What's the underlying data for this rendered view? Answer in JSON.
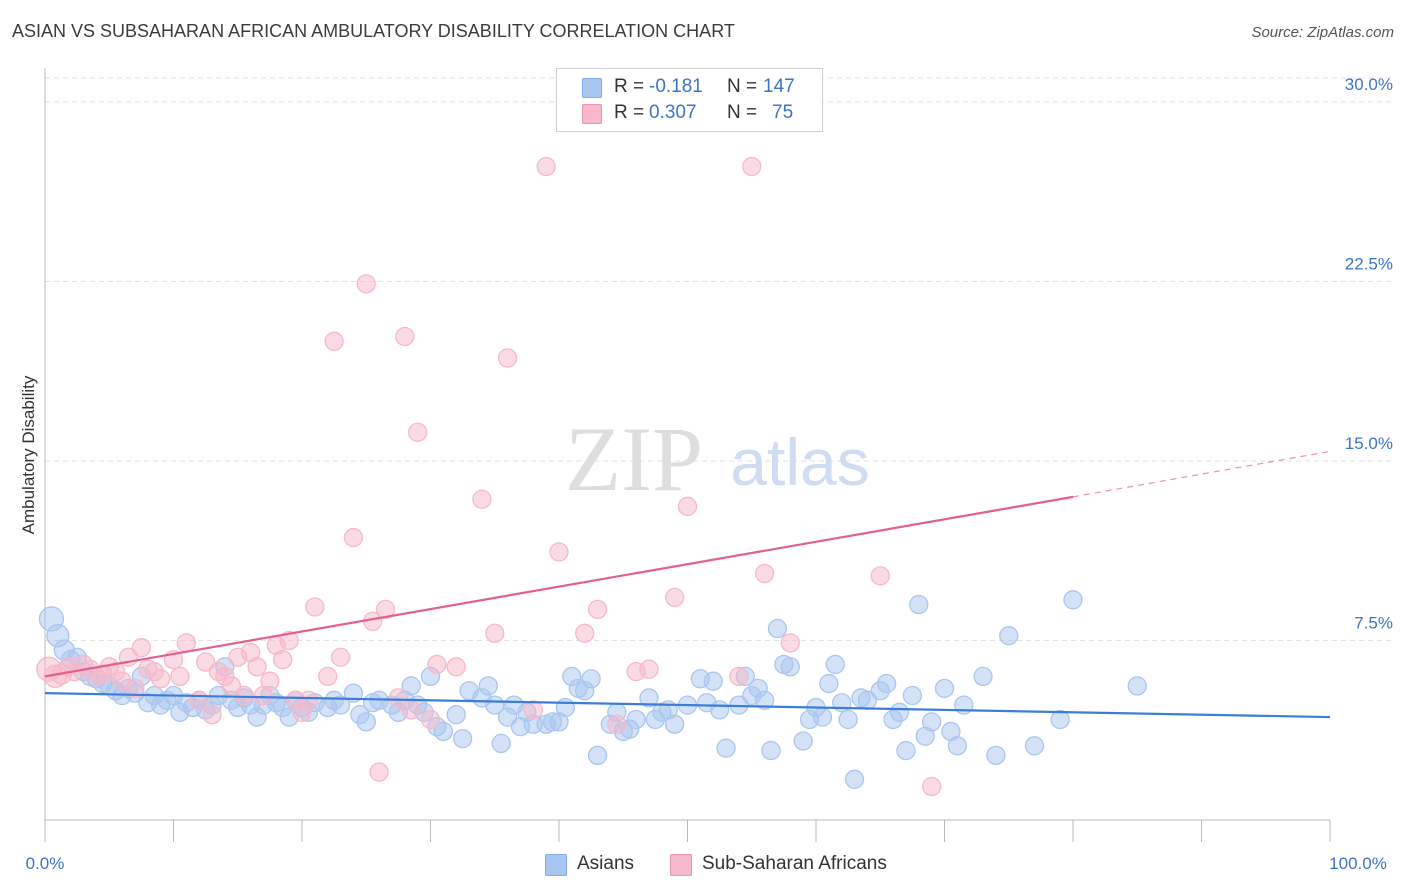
{
  "title": "ASIAN VS SUBSAHARAN AFRICAN AMBULATORY DISABILITY CORRELATION CHART",
  "source": "Source: ZipAtlas.com",
  "watermark": {
    "zip": "ZIP",
    "atlas": "atlas"
  },
  "legend": {
    "rows": [
      {
        "r_label": "R =",
        "r_value": "-0.181",
        "n_label": "N =",
        "n_value": "147",
        "color": "#a9c6f0"
      },
      {
        "r_label": "R =",
        "r_value": "0.307",
        "n_label": "N =",
        "n_value": "75",
        "color": "#f6b8ca"
      }
    ]
  },
  "chart_data": {
    "type": "scatter",
    "title": "ASIAN VS SUBSAHARAN AFRICAN AMBULATORY DISABILITY CORRELATION CHART",
    "xlabel": "",
    "ylabel": "Ambulatory Disability",
    "xlim": [
      0,
      100
    ],
    "ylim": [
      0,
      31
    ],
    "y_ticks": [
      7.5,
      15.0,
      22.5,
      30.0
    ],
    "y_tick_labels": [
      "7.5%",
      "15.0%",
      "22.5%",
      "30.0%"
    ],
    "x_tick_labels": [
      "0.0%",
      "100.0%"
    ],
    "grid": "horizontal dashed",
    "legend_position": "top-center",
    "series": [
      {
        "name": "Asians",
        "color": "#3d7dd8",
        "fill": "#a9c6f0",
        "r": -0.181,
        "n": 147,
        "trend": {
          "x0": 0,
          "y0": 5.3,
          "x1": 100,
          "y1": 4.3
        },
        "points": [
          [
            0.5,
            8.4
          ],
          [
            1,
            7.7
          ],
          [
            1.5,
            7.1
          ],
          [
            2,
            6.7
          ],
          [
            2.5,
            6.8
          ],
          [
            3,
            6.2
          ],
          [
            3.5,
            6.0
          ],
          [
            4,
            5.9
          ],
          [
            4.5,
            5.7
          ],
          [
            5,
            5.6
          ],
          [
            5.5,
            5.4
          ],
          [
            6,
            5.2
          ],
          [
            6.5,
            5.5
          ],
          [
            7,
            5.3
          ],
          [
            7.5,
            6.0
          ],
          [
            8,
            4.9
          ],
          [
            8.5,
            5.2
          ],
          [
            9,
            4.8
          ],
          [
            9.5,
            5.0
          ],
          [
            10,
            5.2
          ],
          [
            10.5,
            4.5
          ],
          [
            11,
            4.9
          ],
          [
            11.5,
            4.7
          ],
          [
            12,
            5.0
          ],
          [
            12.5,
            4.6
          ],
          [
            13,
            4.8
          ],
          [
            13.5,
            5.2
          ],
          [
            14,
            6.4
          ],
          [
            14.5,
            5.0
          ],
          [
            15,
            4.7
          ],
          [
            15.5,
            5.1
          ],
          [
            16,
            4.8
          ],
          [
            16.5,
            4.3
          ],
          [
            17,
            4.8
          ],
          [
            17.5,
            5.2
          ],
          [
            18,
            4.9
          ],
          [
            18.5,
            4.7
          ],
          [
            19,
            4.3
          ],
          [
            19.5,
            5.0
          ],
          [
            20,
            4.7
          ],
          [
            20.5,
            4.5
          ],
          [
            21,
            4.9
          ],
          [
            22,
            4.7
          ],
          [
            22.5,
            5.0
          ],
          [
            23,
            4.8
          ],
          [
            24,
            5.3
          ],
          [
            24.5,
            4.4
          ],
          [
            25,
            4.1
          ],
          [
            25.5,
            4.9
          ],
          [
            26,
            5.0
          ],
          [
            27,
            4.8
          ],
          [
            27.5,
            4.5
          ],
          [
            28,
            5.0
          ],
          [
            28.5,
            5.6
          ],
          [
            29,
            4.8
          ],
          [
            29.5,
            4.5
          ],
          [
            30,
            6.0
          ],
          [
            30.5,
            3.9
          ],
          [
            31,
            3.7
          ],
          [
            32,
            4.4
          ],
          [
            32.5,
            3.4
          ],
          [
            33,
            5.4
          ],
          [
            34,
            5.1
          ],
          [
            34.5,
            5.6
          ],
          [
            35,
            4.8
          ],
          [
            35.5,
            3.2
          ],
          [
            36,
            4.3
          ],
          [
            36.5,
            4.8
          ],
          [
            37,
            3.9
          ],
          [
            37.5,
            4.5
          ],
          [
            38,
            4.0
          ],
          [
            39,
            4.0
          ],
          [
            39.5,
            4.1
          ],
          [
            40,
            4.1
          ],
          [
            40.5,
            4.7
          ],
          [
            41,
            6.0
          ],
          [
            41.5,
            5.5
          ],
          [
            42,
            5.4
          ],
          [
            42.5,
            5.9
          ],
          [
            43,
            2.7
          ],
          [
            44,
            4.0
          ],
          [
            44.5,
            4.5
          ],
          [
            45,
            3.7
          ],
          [
            45.5,
            3.8
          ],
          [
            46,
            4.2
          ],
          [
            47,
            5.1
          ],
          [
            47.5,
            4.2
          ],
          [
            48,
            4.5
          ],
          [
            48.5,
            4.6
          ],
          [
            49,
            4.0
          ],
          [
            50,
            4.8
          ],
          [
            51,
            5.9
          ],
          [
            51.5,
            4.9
          ],
          [
            52,
            5.8
          ],
          [
            52.5,
            4.6
          ],
          [
            53,
            3.0
          ],
          [
            54,
            4.8
          ],
          [
            54.5,
            6.0
          ],
          [
            55,
            5.2
          ],
          [
            55.5,
            5.5
          ],
          [
            56,
            5.0
          ],
          [
            56.5,
            2.9
          ],
          [
            57,
            8.0
          ],
          [
            57.5,
            6.5
          ],
          [
            58,
            6.4
          ],
          [
            59,
            3.3
          ],
          [
            59.5,
            4.2
          ],
          [
            60,
            4.7
          ],
          [
            60.5,
            4.3
          ],
          [
            61,
            5.7
          ],
          [
            61.5,
            6.5
          ],
          [
            62,
            4.9
          ],
          [
            62.5,
            4.2
          ],
          [
            63,
            1.7
          ],
          [
            63.5,
            5.1
          ],
          [
            64,
            5.0
          ],
          [
            65,
            5.4
          ],
          [
            65.5,
            5.7
          ],
          [
            66,
            4.2
          ],
          [
            66.5,
            4.5
          ],
          [
            67,
            2.9
          ],
          [
            67.5,
            5.2
          ],
          [
            68,
            9.0
          ],
          [
            68.5,
            3.5
          ],
          [
            69,
            4.1
          ],
          [
            70,
            5.5
          ],
          [
            70.5,
            3.7
          ],
          [
            71,
            3.1
          ],
          [
            71.5,
            4.8
          ],
          [
            73,
            6.0
          ],
          [
            74,
            2.7
          ],
          [
            75,
            7.7
          ],
          [
            77,
            3.1
          ],
          [
            79,
            4.2
          ],
          [
            80,
            9.2
          ],
          [
            85,
            5.6
          ]
        ]
      },
      {
        "name": "Sub-Saharan Africans",
        "color": "#e2608a",
        "fill": "#f6b8ca",
        "r": 0.307,
        "n": 75,
        "trend": {
          "x0": 0,
          "y0": 6.0,
          "x1": 80,
          "y1": 13.5
        },
        "trend_dashed_to": {
          "x": 100,
          "y": 15.4
        },
        "points": [
          [
            0.3,
            6.3
          ],
          [
            0.8,
            6.0
          ],
          [
            1.3,
            6.1
          ],
          [
            1.8,
            6.4
          ],
          [
            2.3,
            6.2
          ],
          [
            3,
            6.5
          ],
          [
            3.5,
            6.3
          ],
          [
            4,
            6.0
          ],
          [
            4.5,
            6.1
          ],
          [
            5,
            6.4
          ],
          [
            5.5,
            6.2
          ],
          [
            6,
            5.8
          ],
          [
            6.5,
            6.8
          ],
          [
            7,
            5.5
          ],
          [
            7.5,
            7.2
          ],
          [
            8,
            6.3
          ],
          [
            8.5,
            6.2
          ],
          [
            9,
            5.9
          ],
          [
            10,
            6.7
          ],
          [
            10.5,
            6.0
          ],
          [
            11,
            7.4
          ],
          [
            12,
            5.0
          ],
          [
            12.5,
            6.6
          ],
          [
            13,
            4.4
          ],
          [
            13.5,
            6.2
          ],
          [
            14,
            6.0
          ],
          [
            14.5,
            5.6
          ],
          [
            15,
            6.8
          ],
          [
            15.5,
            5.2
          ],
          [
            16,
            7.0
          ],
          [
            16.5,
            6.4
          ],
          [
            17,
            5.2
          ],
          [
            17.5,
            5.8
          ],
          [
            18,
            7.3
          ],
          [
            18.5,
            6.7
          ],
          [
            19,
            7.5
          ],
          [
            19.5,
            5.0
          ],
          [
            20,
            4.5
          ],
          [
            20.5,
            5.0
          ],
          [
            21,
            8.9
          ],
          [
            22,
            6.0
          ],
          [
            22.5,
            20.0
          ],
          [
            23,
            6.8
          ],
          [
            24,
            11.8
          ],
          [
            25,
            22.4
          ],
          [
            25.5,
            8.3
          ],
          [
            26,
            2.0
          ],
          [
            26.5,
            8.8
          ],
          [
            27.5,
            5.1
          ],
          [
            28,
            20.2
          ],
          [
            28.5,
            4.6
          ],
          [
            29,
            16.2
          ],
          [
            30,
            4.2
          ],
          [
            30.5,
            6.5
          ],
          [
            32,
            6.4
          ],
          [
            34,
            13.4
          ],
          [
            35,
            7.8
          ],
          [
            36,
            19.3
          ],
          [
            38,
            4.6
          ],
          [
            39,
            27.3
          ],
          [
            40,
            11.2
          ],
          [
            42,
            7.8
          ],
          [
            43,
            8.8
          ],
          [
            44.5,
            4.0
          ],
          [
            46,
            6.2
          ],
          [
            47,
            6.3
          ],
          [
            49,
            9.3
          ],
          [
            50,
            13.1
          ],
          [
            54,
            6.0
          ],
          [
            55,
            27.3
          ],
          [
            56,
            10.3
          ],
          [
            58,
            7.4
          ],
          [
            65,
            10.2
          ],
          [
            69,
            1.4
          ]
        ]
      }
    ]
  }
}
